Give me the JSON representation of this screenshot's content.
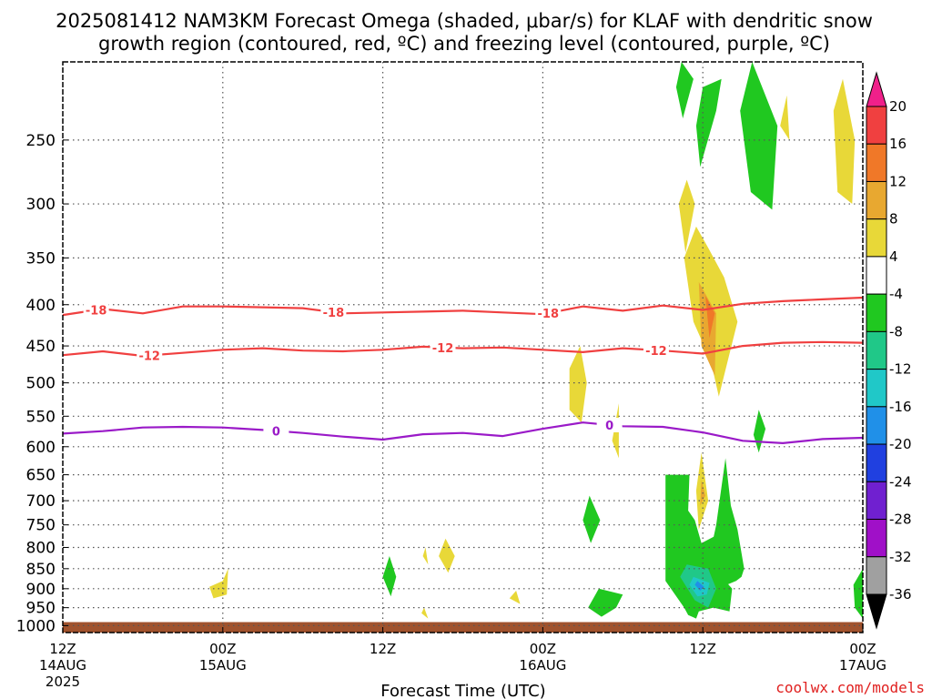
{
  "title": {
    "line1": "2025081412 NAM3KM Forecast Omega (shaded, μbar/s) for KLAF with dendritic snow",
    "line2": "growth region (contoured, red, ºC) and freezing level (contoured, purple, ºC)"
  },
  "credit": "coolwx.com/models",
  "chart_data": {
    "type": "heatmap",
    "xlabel": "Forecast Time (UTC)",
    "x_ticks": [
      {
        "hour": 0,
        "line1": "12Z",
        "line2": "14AUG",
        "line3": "2025"
      },
      {
        "hour": 12,
        "line1": "00Z",
        "line2": "15AUG",
        "line3": ""
      },
      {
        "hour": 24,
        "line1": "12Z",
        "line2": "",
        "line3": ""
      },
      {
        "hour": 36,
        "line1": "00Z",
        "line2": "16AUG",
        "line3": ""
      },
      {
        "hour": 48,
        "line1": "12Z",
        "line2": "",
        "line3": ""
      },
      {
        "hour": 60,
        "line1": "00Z",
        "line2": "17AUG",
        "line3": ""
      }
    ],
    "xlim": [
      0,
      60
    ],
    "y_ticks": [
      250,
      300,
      350,
      400,
      450,
      500,
      550,
      600,
      650,
      700,
      750,
      800,
      850,
      900,
      950,
      1000
    ],
    "ylim": [
      1020,
      200
    ],
    "yscale": "log",
    "ground_level_hpa": 990,
    "grid": "dotted",
    "colorbar": {
      "labels": [
        "20",
        "16",
        "12",
        "8",
        "4",
        "-4",
        "-8",
        "-12",
        "-16",
        "-20",
        "-24",
        "-28",
        "-32",
        "-36"
      ],
      "colors": [
        "#f0208a",
        "#f04040",
        "#f07828",
        "#e8a830",
        "#e8d838",
        "#ffffff",
        "#20c820",
        "#20c888",
        "#20c8c8",
        "#2090e8",
        "#2040e0",
        "#7020d0",
        "#a010c8",
        "#a0a0a0",
        "#000000"
      ]
    },
    "contours": [
      {
        "name": "-18",
        "color": "#f04040",
        "label": "-18",
        "hours": [
          0,
          3,
          6,
          9,
          12,
          15,
          18,
          21,
          24,
          27,
          30,
          33,
          36,
          39,
          42,
          45,
          48,
          51,
          54,
          57,
          60
        ],
        "values": [
          412,
          405,
          410,
          402,
          402,
          403,
          404,
          410,
          409,
          408,
          407,
          409,
          411,
          402,
          407,
          401,
          406,
          399,
          396,
          394,
          392
        ],
        "label_hours": [
          2.5,
          20.3,
          36.4
        ]
      },
      {
        "name": "-12",
        "color": "#f04040",
        "label": "-12",
        "hours": [
          0,
          3,
          6,
          9,
          12,
          15,
          18,
          21,
          24,
          27,
          30,
          33,
          36,
          39,
          42,
          45,
          48,
          51,
          54,
          57,
          60
        ],
        "values": [
          462,
          457,
          463,
          459,
          455,
          453,
          456,
          457,
          455,
          451,
          453,
          452,
          455,
          458,
          453,
          456,
          460,
          450,
          446,
          445,
          446
        ],
        "label_hours": [
          6.5,
          28.5,
          44.5
        ]
      },
      {
        "name": "0",
        "color": "#9a1ac8",
        "label": "0",
        "hours": [
          0,
          3,
          6,
          9,
          12,
          15,
          18,
          21,
          24,
          27,
          30,
          33,
          36,
          39,
          42,
          45,
          48,
          51,
          54,
          57,
          60
        ],
        "values": [
          578,
          574,
          568,
          567,
          568,
          572,
          577,
          583,
          588,
          579,
          577,
          582,
          570,
          560,
          566,
          567,
          576,
          590,
          594,
          587,
          585
        ],
        "label_hours": [
          16.0,
          41.0
        ]
      }
    ],
    "omega_cells": [
      {
        "value": 4,
        "hours": [
          12.4,
          12.0,
          11.0,
          11.3,
          12.3
        ],
        "hpa": [
          850,
          880,
          895,
          925,
          915
        ]
      },
      {
        "value": 4,
        "hours": [
          28.7,
          28.2,
          28.9,
          29.4
        ],
        "hpa": [
          780,
          820,
          860,
          820
        ]
      },
      {
        "value": 4,
        "hours": [
          27.2,
          27.0,
          27.4
        ],
        "hpa": [
          800,
          820,
          840
        ]
      },
      {
        "value": 4,
        "hours": [
          27.1,
          26.9,
          27.4
        ],
        "hpa": [
          950,
          965,
          980
        ]
      },
      {
        "value": 4,
        "hours": [
          34.0,
          33.5,
          34.3
        ],
        "hpa": [
          905,
          925,
          940
        ]
      },
      {
        "value": 4,
        "hours": [
          38.8,
          38.0,
          38.0,
          38.9,
          39.3
        ],
        "hpa": [
          450,
          480,
          540,
          560,
          500
        ]
      },
      {
        "value": 4,
        "hours": [
          41.7,
          41.2,
          41.7
        ],
        "hpa": [
          530,
          590,
          620
        ]
      },
      {
        "value": 4,
        "hours": [
          46.8,
          46.2,
          46.7,
          47.4
        ],
        "hpa": [
          280,
          300,
          345,
          300
        ]
      },
      {
        "value": 4,
        "hours": [
          47.5,
          46.6,
          47.3,
          48.6,
          49.2,
          50.6,
          49.6,
          48.4
        ],
        "hpa": [
          320,
          350,
          420,
          470,
          520,
          420,
          370,
          340
        ]
      },
      {
        "value": 8,
        "hours": [
          47.7,
          47.9,
          48.9,
          49.0
        ],
        "hpa": [
          375,
          450,
          490,
          410
        ]
      },
      {
        "value": 12,
        "hours": [
          48.2,
          48.5,
          48.9
        ],
        "hpa": [
          390,
          440,
          410
        ]
      },
      {
        "value": 4,
        "hours": [
          47.9,
          47.5,
          47.7,
          48.4
        ],
        "hpa": [
          610,
          680,
          760,
          700
        ]
      },
      {
        "value": 8,
        "hours": [
          47.9,
          47.8,
          48.2
        ],
        "hpa": [
          660,
          710,
          690
        ]
      },
      {
        "value": 4,
        "hours": [
          54.3,
          53.8,
          54.5
        ],
        "hpa": [
          220,
          240,
          250
        ]
      },
      {
        "value": 4,
        "hours": [
          58.5,
          57.8,
          58.1,
          59.2,
          59.4
        ],
        "hpa": [
          210,
          230,
          290,
          300,
          250
        ]
      },
      {
        "value": -4,
        "hours": [
          46.4,
          46.0,
          46.5,
          47.3
        ],
        "hpa": [
          200,
          215,
          235,
          210
        ]
      },
      {
        "value": -4,
        "hours": [
          48.0,
          47.5,
          47.8,
          49.0,
          49.4
        ],
        "hpa": [
          215,
          240,
          270,
          230,
          210
        ]
      },
      {
        "value": -4,
        "hours": [
          51.7,
          50.8,
          51.6,
          53.2,
          53.6
        ],
        "hpa": [
          200,
          230,
          290,
          305,
          240
        ]
      },
      {
        "value": -4,
        "hours": [
          52.2,
          51.8,
          52.2,
          52.7
        ],
        "hpa": [
          540,
          580,
          610,
          570
        ]
      },
      {
        "value": -4,
        "hours": [
          24.5,
          24.0,
          24.6,
          25.0
        ],
        "hpa": [
          820,
          870,
          920,
          870
        ]
      },
      {
        "value": -4,
        "hours": [
          39.5,
          39.0,
          39.6,
          40.3
        ],
        "hpa": [
          690,
          740,
          790,
          740
        ]
      },
      {
        "value": -4,
        "hours": [
          40.2,
          39.4,
          40.4,
          41.5,
          42.0
        ],
        "hpa": [
          900,
          950,
          975,
          950,
          915
        ]
      },
      {
        "value": -4,
        "hours": [
          45.2,
          45.2,
          46.6,
          46.9,
          47.5,
          47.7,
          48.8,
          50.0,
          50.2,
          49.4,
          49.2,
          47.9,
          47.4,
          46.9,
          47.0,
          46.6
        ],
        "hpa": [
          650,
          880,
          950,
          970,
          980,
          960,
          950,
          960,
          900,
          870,
          770,
          790,
          740,
          720,
          650,
          650
        ]
      },
      {
        "value": -4,
        "hours": [
          49.0,
          48.3,
          49.1,
          50.5,
          50.9,
          51.1,
          50.6,
          50.1,
          49.7
        ],
        "hpa": [
          750,
          850,
          900,
          880,
          870,
          850,
          760,
          710,
          620
        ]
      },
      {
        "value": -8,
        "hours": [
          46.8,
          46.3,
          47.4,
          48.4,
          49.0,
          48.4
        ],
        "hpa": [
          840,
          870,
          930,
          950,
          900,
          850
        ]
      },
      {
        "value": -12,
        "hours": [
          47.3,
          47.0,
          47.6,
          48.3,
          48.5
        ],
        "hpa": [
          870,
          890,
          920,
          915,
          885
        ]
      },
      {
        "value": -16,
        "hours": [
          47.6,
          47.4,
          47.8,
          48.1
        ],
        "hpa": [
          880,
          890,
          905,
          895
        ]
      },
      {
        "value": -4,
        "hours": [
          60.0,
          59.3,
          59.4,
          60.0
        ],
        "hpa": [
          850,
          890,
          950,
          980
        ]
      }
    ]
  }
}
